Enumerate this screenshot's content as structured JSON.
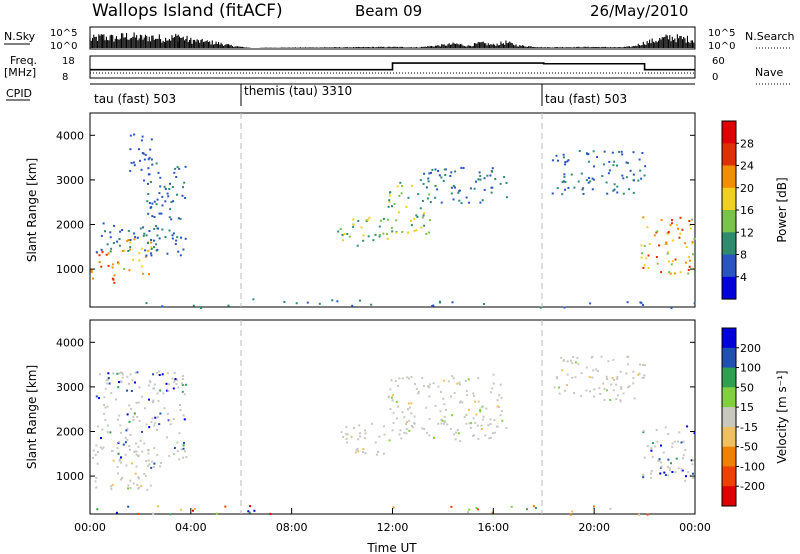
{
  "header": {
    "station": "Wallops Island (fitACF)",
    "beam": "Beam 09",
    "date": "26/May/2010"
  },
  "left_labels": {
    "nsky": "N.Sky",
    "freq": "Freq.",
    "freq_unit": "[MHz]",
    "cpid": "CPID"
  },
  "right_labels": {
    "nsearch": "N.Search",
    "nave": "Nave"
  },
  "chart_data": [
    {
      "type": "line",
      "name": "nsky-panel",
      "left_ticks": [
        "10^5",
        "10^0"
      ],
      "right_ticks": [
        "10^5",
        "10^0"
      ],
      "series": [
        {
          "name": "N.Sky",
          "x": [
            0,
            0.5,
            1,
            1.5,
            2,
            2.5,
            3,
            3.5,
            4,
            4.5,
            5,
            5.2,
            5.5,
            6,
            6.5,
            7,
            10,
            12,
            13,
            14,
            14.5,
            15,
            15.5,
            16,
            16.5,
            17,
            18,
            20,
            21,
            21.5,
            22,
            22.5,
            23,
            23.5,
            24
          ],
          "y": [
            2.5,
            3.2,
            2.8,
            3.5,
            2.9,
            3.1,
            2.6,
            3.3,
            2.2,
            1.8,
            1.5,
            1.2,
            0.8,
            0.3,
            0,
            0.1,
            0.2,
            0.3,
            0.2,
            0.8,
            1.2,
            0.6,
            1.4,
            0.9,
            1.6,
            0.7,
            0.2,
            0.3,
            0.2,
            0.4,
            1.5,
            2.3,
            3.1,
            2.7,
            2.4
          ]
        }
      ]
    },
    {
      "type": "line",
      "name": "freq-nave-panel",
      "left_ticks": [
        "18",
        "8"
      ],
      "right_ticks": [
        "60",
        "0"
      ],
      "series": [
        {
          "name": "Freq",
          "x": [
            0,
            12,
            12,
            18,
            18,
            22,
            22,
            24
          ],
          "y": [
            11.5,
            11.5,
            15.2,
            15.2,
            14.8,
            14.8,
            11.5,
            11.5
          ]
        },
        {
          "name": "Nave",
          "x": [
            0,
            24
          ],
          "y": [
            10,
            10
          ]
        }
      ]
    },
    {
      "type": "table",
      "name": "cpid-strip",
      "segments": [
        {
          "label": "tau (fast) 503",
          "start": 0,
          "end": 6
        },
        {
          "label": "themis (tau) 3310",
          "start": 6,
          "end": 18
        },
        {
          "label": "tau (fast) 503",
          "start": 18,
          "end": 24
        }
      ]
    },
    {
      "type": "heatmap",
      "name": "power",
      "ylabel": "Slant Range [km]",
      "xlim": [
        0,
        24
      ],
      "ylim": [
        150,
        4500
      ],
      "yticks": [
        1000,
        2000,
        3000,
        4000
      ],
      "colorbar": {
        "label": "Power [dB]",
        "ticks": [
          "28",
          "24",
          "20",
          "16",
          "12",
          "8",
          "4"
        ],
        "colors": [
          "#0000dd",
          "#2a55c0",
          "#2e8b6e",
          "#79c24b",
          "#f0d020",
          "#f09000",
          "#e03000",
          "#e00000"
        ]
      },
      "regions": [
        {
          "x0": 0.0,
          "x1": 1.1,
          "y0": 700,
          "y1": 1500,
          "power": [
            20,
            28
          ]
        },
        {
          "x0": 1.1,
          "x1": 2.4,
          "y0": 900,
          "y1": 1700,
          "power": [
            14,
            24
          ]
        },
        {
          "x0": 0.2,
          "x1": 2.8,
          "y0": 1400,
          "y1": 2100,
          "power": [
            4,
            12
          ]
        },
        {
          "x0": 2.2,
          "x1": 3.8,
          "y0": 1300,
          "y1": 3400,
          "power": [
            4,
            10
          ]
        },
        {
          "x0": 1.5,
          "x1": 2.5,
          "y0": 3000,
          "y1": 4100,
          "power": [
            4,
            8
          ]
        },
        {
          "x0": 9.8,
          "x1": 11.9,
          "y0": 1500,
          "y1": 2200,
          "power": [
            8,
            20
          ]
        },
        {
          "x0": 11.8,
          "x1": 13.5,
          "y0": 1800,
          "y1": 3000,
          "power": [
            8,
            20
          ]
        },
        {
          "x0": 13.0,
          "x1": 16.5,
          "y0": 2500,
          "y1": 3300,
          "power": [
            4,
            12
          ]
        },
        {
          "x0": 18.3,
          "x1": 22.0,
          "y0": 2700,
          "y1": 3700,
          "power": [
            4,
            12
          ]
        },
        {
          "x0": 21.8,
          "x1": 24.0,
          "y0": 900,
          "y1": 2200,
          "power": [
            12,
            28
          ]
        },
        {
          "x0": 0.0,
          "x1": 24.0,
          "y0": 150,
          "y1": 350,
          "power": [
            4,
            12
          ]
        }
      ]
    },
    {
      "type": "heatmap",
      "name": "velocity",
      "xlabel": "Time UT",
      "ylabel": "Slant Range [km]",
      "xlim": [
        0,
        24
      ],
      "ylim": [
        150,
        4500
      ],
      "yticks": [
        1000,
        2000,
        3000,
        4000
      ],
      "xticks": [
        "00:00",
        "04:00",
        "08:00",
        "12:00",
        "16:00",
        "20:00",
        "00:00"
      ],
      "colorbar": {
        "label": "Velocity [m s⁻¹]",
        "ticks": [
          "200",
          "100",
          "50",
          "15",
          "-15",
          "-50",
          "-100",
          "-200"
        ],
        "colors": [
          "#e00000",
          "#f04000",
          "#f08000",
          "#f0c060",
          "#c8c8c0",
          "#80d040",
          "#30a050",
          "#2050b0",
          "#0000dd"
        ]
      },
      "regions": [
        {
          "x0": 0.0,
          "x1": 2.4,
          "y0": 700,
          "y1": 1700,
          "vel": "ground"
        },
        {
          "x0": 0.2,
          "x1": 3.8,
          "y0": 1200,
          "y1": 3400,
          "vel": "mixed"
        },
        {
          "x0": 9.8,
          "x1": 11.9,
          "y0": 1500,
          "y1": 2200,
          "vel": "ground"
        },
        {
          "x0": 11.8,
          "x1": 16.5,
          "y0": 1800,
          "y1": 3300,
          "vel": "ground"
        },
        {
          "x0": 18.3,
          "x1": 22.0,
          "y0": 2700,
          "y1": 3700,
          "vel": "ground"
        },
        {
          "x0": 21.8,
          "x1": 24.0,
          "y0": 900,
          "y1": 2200,
          "vel": "mixed"
        },
        {
          "x0": 0.0,
          "x1": 24.0,
          "y0": 150,
          "y1": 350,
          "vel": "low"
        }
      ]
    }
  ]
}
